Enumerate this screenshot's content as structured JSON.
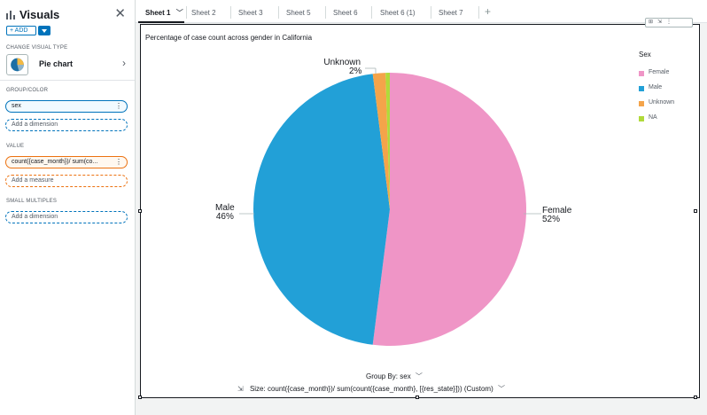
{
  "panel": {
    "title": "Visuals",
    "add_label": "+ ADD",
    "change_visual_type_label": "CHANGE VISUAL TYPE",
    "visual_type": "Pie chart",
    "group_color_label": "GROUP/COLOR",
    "group_field": "sex",
    "add_dimension_1": "Add a dimension",
    "value_label": "VALUE",
    "value_field": "count({case_month})/ sum(co...",
    "add_measure": "Add a measure",
    "small_multiples_label": "SMALL MULTIPLES",
    "add_dimension_2": "Add a dimension"
  },
  "tabs": [
    {
      "label": "Sheet 1"
    },
    {
      "label": "Sheet 2"
    },
    {
      "label": "Sheet 3"
    },
    {
      "label": "Sheet 5"
    },
    {
      "label": "Sheet 6"
    },
    {
      "label": "Sheet 6 (1)"
    },
    {
      "label": "Sheet 7"
    }
  ],
  "chart_data": {
    "type": "pie",
    "title": "Percentage of case count across gender in California",
    "legend_title": "Sex",
    "categories": [
      "Female",
      "Male",
      "Unknown",
      "NA"
    ],
    "values": [
      52,
      46,
      1.5,
      0.5
    ],
    "value_labels": [
      "52%",
      "46%",
      "2%",
      ""
    ],
    "colors": [
      "#ef95c6",
      "#22a0d7",
      "#f4a44a",
      "#b0da3a"
    ],
    "legend_position": "right"
  },
  "labels": {
    "female_name": "Female",
    "female_pct": "52%",
    "male_name": "Male",
    "male_pct": "46%",
    "unknown_name": "Unknown",
    "unknown_pct": "2%"
  },
  "footer": {
    "group_by": "Group By: sex",
    "size": "Size: count({case_month})/ sum(count({case_month}, [{res_state}])) (Custom)"
  }
}
